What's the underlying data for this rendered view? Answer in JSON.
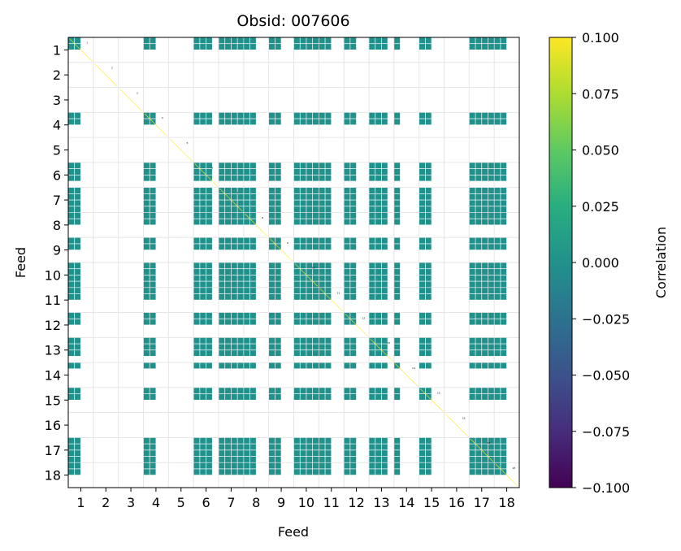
{
  "chart_data": {
    "type": "heatmap",
    "title": "Obsid: 007606",
    "xlabel": "Feed",
    "ylabel": "Feed",
    "colorbar_label": "Correlation",
    "feeds": [
      1,
      2,
      3,
      4,
      5,
      6,
      7,
      8,
      9,
      10,
      11,
      12,
      13,
      14,
      15,
      16,
      17,
      18
    ],
    "x_tick_labels": [
      "1",
      "2",
      "3",
      "4",
      "5",
      "6",
      "7",
      "8",
      "9",
      "10",
      "11",
      "12",
      "13",
      "14",
      "15",
      "16",
      "17",
      "18"
    ],
    "y_tick_labels": [
      "1",
      "2",
      "3",
      "4",
      "5",
      "6",
      "7",
      "8",
      "9",
      "10",
      "11",
      "12",
      "13",
      "14",
      "15",
      "16",
      "17",
      "18"
    ],
    "sidebands_per_feed": 4,
    "active_sideband_rows": [
      0,
      1,
      12,
      13,
      20,
      21,
      22,
      24,
      25,
      26,
      27,
      28,
      29,
      32,
      33,
      36,
      37,
      38,
      39,
      40,
      41,
      44,
      45,
      48,
      49,
      50,
      52,
      56,
      57,
      64,
      65,
      66,
      67,
      68,
      69
    ],
    "active_value": 0.0,
    "diagonal_value": 1.0,
    "grid": true,
    "colorbar": {
      "min": -0.1,
      "max": 0.1,
      "ticks": [
        -0.1,
        -0.075,
        -0.05,
        -0.025,
        0.0,
        0.025,
        0.05,
        0.075,
        0.1
      ],
      "tick_labels": [
        "−0.100",
        "−0.075",
        "−0.050",
        "−0.025",
        "0.000",
        "0.025",
        "0.050",
        "0.075",
        "0.100"
      ],
      "colormap": "viridis"
    },
    "active_color": "#21918c",
    "colormap_stops": [
      "#440154",
      "#3b528b",
      "#21918c",
      "#5ec962",
      "#fde725"
    ]
  }
}
